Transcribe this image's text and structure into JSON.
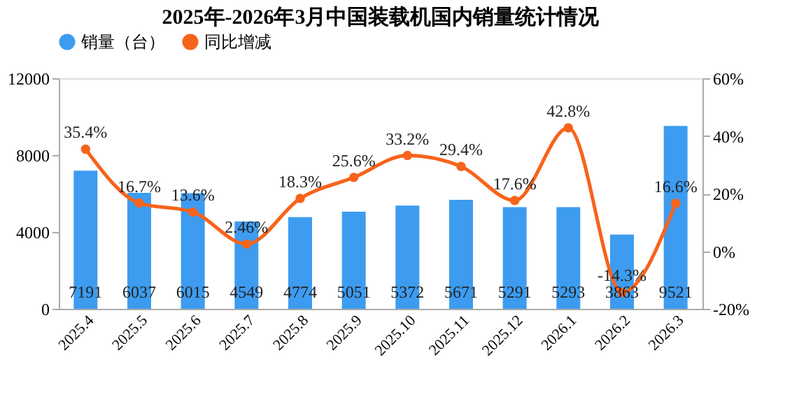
{
  "chart_data": {
    "type": "bar",
    "title": "2025年-2026年3月中国装载机国内销量统计情况",
    "categories": [
      "2025.4",
      "2025.5",
      "2025.6",
      "2025.7",
      "2025.8",
      "2025.9",
      "2025.10",
      "2025.11",
      "2025.12",
      "2026.1",
      "2026.2",
      "2026.3"
    ],
    "series": [
      {
        "name": "销量（台）",
        "color": "#3d9cf0",
        "values": [
          7191,
          6037,
          6015,
          4549,
          4774,
          5051,
          5372,
          5671,
          5291,
          5293,
          3863,
          9521
        ],
        "value_labels": [
          "7191",
          "6037",
          "6015",
          "4549",
          "4774",
          "5051",
          "5372",
          "5671",
          "5291",
          "5293",
          "3863",
          "9521"
        ]
      },
      {
        "name": "同比增减",
        "type": "line",
        "axis": "y2",
        "color": "#f7631b",
        "marker": "circle",
        "values": [
          35.4,
          16.7,
          13.6,
          2.46,
          18.3,
          25.6,
          33.2,
          29.4,
          17.6,
          42.8,
          -14.3,
          16.6
        ],
        "value_labels": [
          "35.4%",
          "16.7%",
          "13.6%",
          "2.46%",
          "18.3%",
          "25.6%",
          "33.2%",
          "29.4%",
          "17.6%",
          "42.8%",
          "-14.3%",
          "16.6%"
        ]
      }
    ],
    "ylim": [
      0,
      12000
    ],
    "yticks": [
      0,
      4000,
      8000,
      12000
    ],
    "y2lim": [
      -20,
      60
    ],
    "y2ticks": [
      {
        "value": -20,
        "label": "-20%"
      },
      {
        "value": 0,
        "label": "0%"
      },
      {
        "value": 20,
        "label": "20%"
      },
      {
        "value": 40,
        "label": "40%"
      },
      {
        "value": 60,
        "label": "60%"
      }
    ],
    "legend": "top",
    "grid": false
  }
}
